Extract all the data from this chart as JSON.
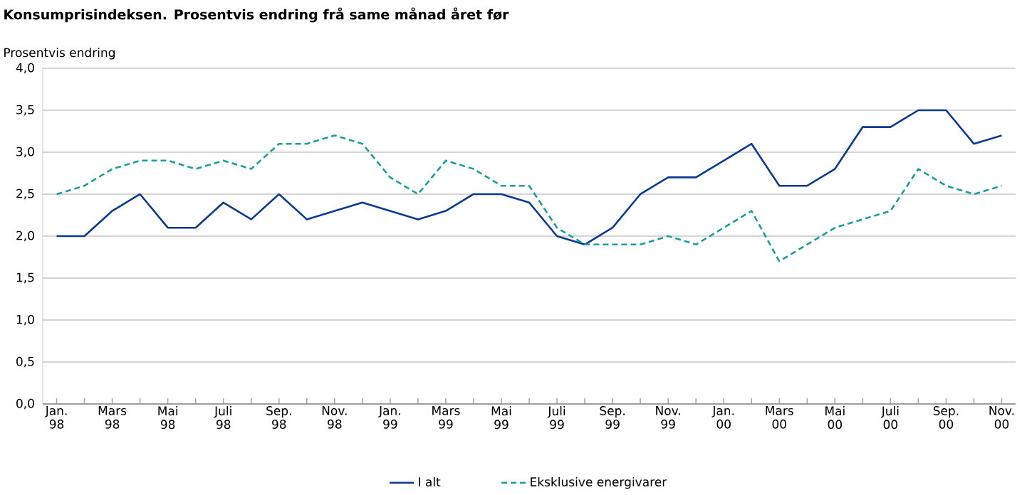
{
  "chart_data": {
    "type": "line",
    "title": "Konsumprisindeksen.  Prosentvis endring frå same månad året før",
    "ylabel": "Prosentvis endring",
    "categories": [
      "Jan. 98",
      null,
      "Mars 98",
      null,
      "Mai 98",
      null,
      "Juli 98",
      null,
      "Sep. 98",
      null,
      "Nov. 98",
      null,
      "Jan. 99",
      null,
      "Mars 99",
      null,
      "Mai 99",
      null,
      "Juli 99",
      null,
      "Sep. 99",
      null,
      "Nov. 99",
      null,
      "Jan. 00",
      null,
      "Mars 00",
      null,
      "Mai 00",
      null,
      "Juli 00",
      null,
      "Sep. 00",
      null,
      "Nov. 00"
    ],
    "series": [
      {
        "name": "I alt",
        "color": "#0b3a94",
        "line_style": "solid",
        "values": [
          2.0,
          2.0,
          2.3,
          2.5,
          2.1,
          2.1,
          2.4,
          2.2,
          2.5,
          2.2,
          2.3,
          2.4,
          2.3,
          2.2,
          2.3,
          2.5,
          2.5,
          2.4,
          2.0,
          1.9,
          2.1,
          2.5,
          2.7,
          2.7,
          2.9,
          3.1,
          2.6,
          2.6,
          2.8,
          3.3,
          3.3,
          3.5,
          3.5,
          3.1,
          3.2
        ]
      },
      {
        "name": "Eksklusive energivarer",
        "color": "#1a9e9e",
        "line_style": "dashed",
        "values": [
          2.5,
          2.6,
          2.8,
          2.9,
          2.9,
          2.8,
          2.9,
          2.8,
          3.1,
          3.1,
          3.2,
          3.1,
          2.7,
          2.5,
          2.9,
          2.8,
          2.6,
          2.6,
          2.1,
          1.9,
          1.9,
          1.9,
          2.0,
          1.9,
          2.1,
          2.3,
          1.7,
          1.9,
          2.1,
          2.2,
          2.3,
          2.8,
          2.6,
          2.5,
          2.6
        ]
      }
    ],
    "ylim": [
      0,
      4
    ],
    "yticks": [
      {
        "value": 0,
        "label": "0,0"
      },
      {
        "value": 0.5,
        "label": "0,5"
      },
      {
        "value": 1,
        "label": "1,0"
      },
      {
        "value": 1.5,
        "label": "1,5"
      },
      {
        "value": 2,
        "label": "2,0"
      },
      {
        "value": 2.5,
        "label": "2,5"
      },
      {
        "value": 3,
        "label": "3,0"
      },
      {
        "value": 3.5,
        "label": "3,5"
      },
      {
        "value": 4,
        "label": "4,0"
      }
    ],
    "grid": "y",
    "legend": "bottom"
  }
}
